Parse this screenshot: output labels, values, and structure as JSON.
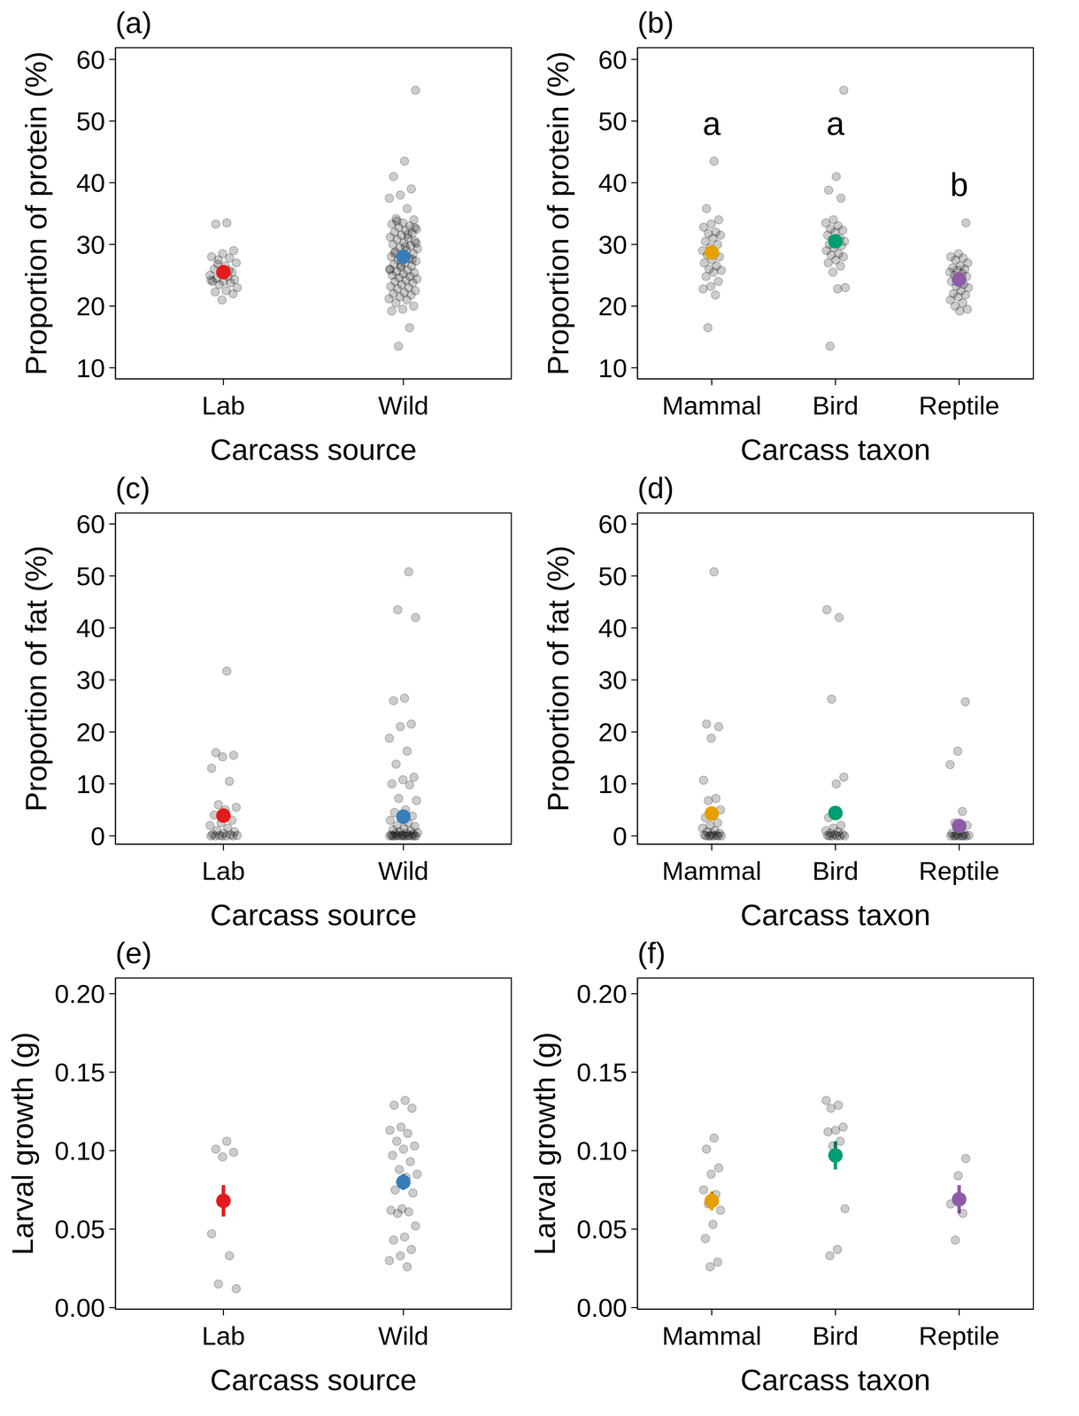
{
  "chart_data": [
    {
      "type": "scatter",
      "title": "(a)",
      "xlabel": "Carcass source",
      "ylabel": "Proportion of protein (%)",
      "categories": [
        "Lab",
        "Wild"
      ],
      "colors": [
        "#e41a1c",
        "#377eb8"
      ],
      "values": [
        25.5,
        28.0
      ],
      "errors": [
        0.8,
        0.7
      ],
      "points": [
        [
          33.5,
          33.3,
          29,
          28.5,
          28,
          27.8,
          27.5,
          27,
          26.5,
          26,
          25.5,
          25.2,
          25,
          24.8,
          24.5,
          24.3,
          24,
          24,
          23.8,
          23.5,
          23,
          22.5,
          22.3,
          22,
          21,
          24.2,
          25.8,
          26.8
        ],
        [
          55,
          43.5,
          41,
          39,
          38,
          37.5,
          35.8,
          34.2,
          34,
          33.5,
          33.3,
          33,
          32.8,
          32.5,
          32.3,
          32,
          31.8,
          31.5,
          31.2,
          31,
          30.8,
          30.5,
          30.3,
          30,
          29.8,
          29.5,
          29.3,
          29,
          28.8,
          28.5,
          28.3,
          28,
          27.8,
          27.5,
          27.3,
          27,
          26.8,
          26.5,
          26.3,
          26,
          25.8,
          25.6,
          25.4,
          25.2,
          25,
          24.8,
          24.6,
          24.4,
          24.2,
          24,
          23.8,
          23.5,
          23.2,
          23,
          22.8,
          22.5,
          22.2,
          22,
          21.8,
          21.5,
          21.2,
          21,
          20.5,
          20,
          19.5,
          19.2,
          16.5,
          13.5,
          30.2,
          29.6,
          28.6,
          27.6,
          26.6,
          25.9,
          31.6,
          33.8,
          32.7,
          28.1
        ]
      ],
      "ylim": [
        8.2,
        61.9
      ],
      "yticks": [
        10,
        20,
        30,
        40,
        50,
        60
      ]
    },
    {
      "type": "scatter",
      "title": "(b)",
      "xlabel": "Carcass taxon",
      "ylabel": "Proportion of protein (%)",
      "categories": [
        "Mammal",
        "Bird",
        "Reptile"
      ],
      "colors": [
        "#e69f00",
        "#009e73",
        "#8e5ba8"
      ],
      "values": [
        28.7,
        30.5,
        24.3
      ],
      "errors": [
        0.9,
        1.1,
        0.8
      ],
      "points": [
        [
          43.5,
          35.8,
          34,
          33.3,
          32.8,
          32,
          31.8,
          31.5,
          31,
          30.5,
          30,
          29.5,
          29,
          28.5,
          28.3,
          28,
          27.5,
          27,
          26.5,
          26,
          25.8,
          25.5,
          24.8,
          24,
          23.2,
          22.8,
          21.8,
          16.5
        ],
        [
          55,
          41,
          38.8,
          37.5,
          34,
          33.5,
          33,
          32.5,
          32.3,
          32,
          31.5,
          31,
          30.8,
          30.5,
          30.2,
          30,
          29.8,
          29.5,
          29,
          28.5,
          28.3,
          28,
          27.5,
          27,
          26.5,
          25.5,
          23,
          22.8,
          13.5
        ],
        [
          33.5,
          28.5,
          28,
          27.8,
          27.5,
          27,
          26.5,
          26.2,
          26,
          25.8,
          25.5,
          25.3,
          25,
          24.8,
          24.5,
          24,
          23.5,
          23.2,
          23,
          22.5,
          22,
          21.8,
          21.5,
          21,
          20.5,
          20,
          19.5,
          19.2
        ]
      ],
      "annotations": [
        {
          "category": "Mammal",
          "y": 49.6,
          "text": "a"
        },
        {
          "category": "Bird",
          "y": 49.6,
          "text": "a"
        },
        {
          "category": "Reptile",
          "y": 39.7,
          "text": "b"
        }
      ],
      "ylim": [
        8.2,
        61.9
      ],
      "yticks": [
        10,
        20,
        30,
        40,
        50,
        60
      ]
    },
    {
      "type": "scatter",
      "title": "(c)",
      "xlabel": "Carcass source",
      "ylabel": "Proportion of fat (%)",
      "categories": [
        "Lab",
        "Wild"
      ],
      "colors": [
        "#e41a1c",
        "#377eb8"
      ],
      "values": [
        3.9,
        3.7
      ],
      "errors": [
        1.2,
        1.0
      ],
      "points": [
        [
          31.7,
          16,
          15.5,
          15.2,
          13,
          10.5,
          6,
          5.5,
          5,
          4,
          3,
          2.5,
          2,
          1.5,
          1,
          0.8,
          0.5,
          0.3,
          0.2,
          0.1,
          0.1,
          0,
          0,
          0,
          0,
          0
        ],
        [
          50.8,
          43.5,
          42,
          26.5,
          26,
          21.5,
          21,
          18.8,
          16.3,
          13.8,
          11.3,
          10.8,
          10,
          9.8,
          7.2,
          6.8,
          5,
          4.5,
          3.8,
          3.5,
          3,
          2.5,
          2,
          1.8,
          1.5,
          1.2,
          1,
          0.8,
          0.6,
          0.5,
          0.4,
          0.3,
          0.2,
          0.2,
          0.1,
          0.1,
          0,
          0,
          0,
          0,
          0,
          0,
          0,
          0,
          0,
          0,
          0
        ]
      ],
      "ylim": [
        -1.6,
        62.1
      ],
      "yticks": [
        0,
        10,
        20,
        30,
        40,
        50,
        60
      ]
    },
    {
      "type": "scatter",
      "title": "(d)",
      "xlabel": "Carcass taxon",
      "ylabel": "Proportion of fat (%)",
      "categories": [
        "Mammal",
        "Bird",
        "Reptile"
      ],
      "colors": [
        "#e69f00",
        "#009e73",
        "#8e5ba8"
      ],
      "values": [
        4.3,
        4.4,
        1.9
      ],
      "errors": [
        1.0,
        1.3,
        0.9
      ],
      "points": [
        [
          50.8,
          21.5,
          21,
          18.8,
          10.7,
          7.2,
          6.8,
          5,
          4,
          3.5,
          2.5,
          2,
          1.5,
          1,
          0.8,
          0.5,
          0.3,
          0.2,
          0.1,
          0,
          0,
          0,
          0,
          0,
          0
        ],
        [
          43.5,
          42,
          26.3,
          11.3,
          10,
          3.5,
          2,
          1.5,
          1,
          0.8,
          0.5,
          0.3,
          0.2,
          0.1,
          0,
          0,
          0,
          0,
          0
        ],
        [
          25.8,
          16.3,
          13.7,
          4.7,
          2.5,
          2,
          1,
          0.5,
          0.3,
          0.2,
          0.1,
          0,
          0,
          0,
          0,
          0,
          0,
          0
        ]
      ],
      "ylim": [
        -1.6,
        62.1
      ],
      "yticks": [
        0,
        10,
        20,
        30,
        40,
        50,
        60
      ]
    },
    {
      "type": "scatter",
      "title": "(e)",
      "xlabel": "Carcass source",
      "ylabel": "Larval growth (g)",
      "categories": [
        "Lab",
        "Wild"
      ],
      "colors": [
        "#e41a1c",
        "#377eb8"
      ],
      "values": [
        0.068,
        0.08
      ],
      "errors": [
        0.01,
        0.005
      ],
      "points": [
        [
          0.106,
          0.101,
          0.099,
          0.096,
          0.047,
          0.033,
          0.015,
          0.012
        ],
        [
          0.132,
          0.129,
          0.127,
          0.115,
          0.113,
          0.111,
          0.106,
          0.103,
          0.101,
          0.097,
          0.093,
          0.088,
          0.085,
          0.083,
          0.075,
          0.073,
          0.063,
          0.062,
          0.061,
          0.06,
          0.052,
          0.045,
          0.043,
          0.037,
          0.033,
          0.03,
          0.026
        ]
      ],
      "ylim": [
        -0.001,
        0.21
      ],
      "yticks": [
        {
          "value": 0,
          "label": "0.00"
        },
        0.05,
        {
          "value": 0.1,
          "label": "0.10"
        },
        0.15,
        {
          "value": 0.2,
          "label": "0.20"
        }
      ]
    },
    {
      "type": "scatter",
      "title": "(f)",
      "xlabel": "Carcass taxon",
      "ylabel": "Larval growth (g)",
      "categories": [
        "Mammal",
        "Bird",
        "Reptile"
      ],
      "colors": [
        "#e69f00",
        "#009e73",
        "#8e5ba8"
      ],
      "values": [
        0.068,
        0.097,
        0.069
      ],
      "errors": [
        0.006,
        0.009,
        0.009
      ],
      "points": [
        [
          0.108,
          0.101,
          0.089,
          0.085,
          0.075,
          0.072,
          0.066,
          0.062,
          0.053,
          0.044,
          0.029,
          0.026
        ],
        [
          0.132,
          0.129,
          0.127,
          0.115,
          0.113,
          0.112,
          0.106,
          0.103,
          0.063,
          0.037,
          0.033
        ],
        [
          0.095,
          0.084,
          0.066,
          0.06,
          0.043
        ]
      ],
      "ylim": [
        -0.001,
        0.21
      ],
      "yticks": [
        {
          "value": 0,
          "label": "0.00"
        },
        0.05,
        {
          "value": 0.1,
          "label": "0.10"
        },
        0.15,
        {
          "value": 0.2,
          "label": "0.20"
        }
      ]
    }
  ]
}
